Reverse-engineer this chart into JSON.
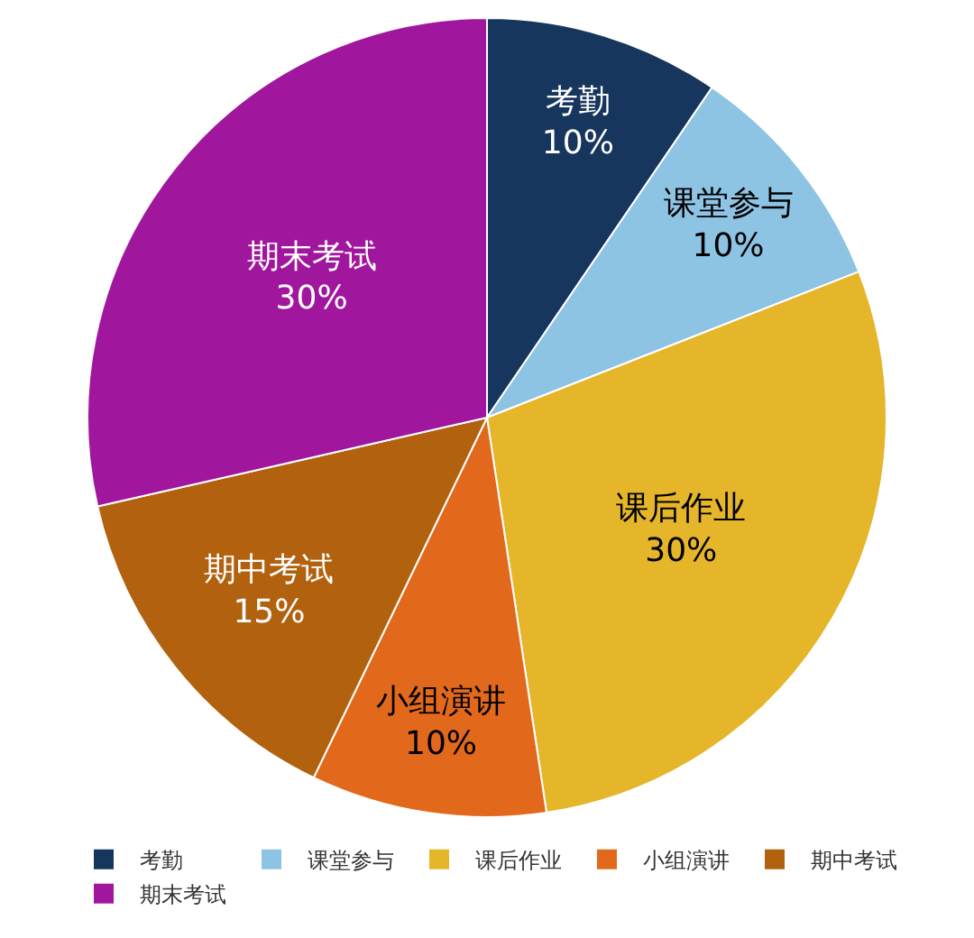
{
  "chart_data": {
    "type": "pie",
    "categories": [
      "考勤",
      "课堂参与",
      "课后作业",
      "小组演讲",
      "期中考试",
      "期末考试"
    ],
    "values": [
      10,
      10,
      30,
      10,
      15,
      30
    ],
    "value_labels": [
      "10%",
      "10%",
      "30%",
      "10%",
      "15%",
      "30%"
    ],
    "colors": [
      "#17365d",
      "#8dc3e3",
      "#e5b52a",
      "#e2681c",
      "#b2620f",
      "#a0179e"
    ],
    "legend": "bottom"
  }
}
